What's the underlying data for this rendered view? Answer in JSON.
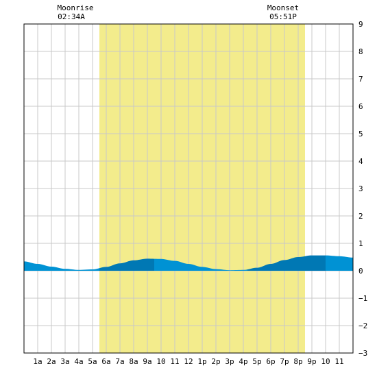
{
  "header": {
    "moonrise_label": "Moonrise",
    "moonrise_time": "02:34A",
    "moonset_label": "Moonset",
    "moonset_time": "05:51P"
  },
  "colors": {
    "daylight": "#f3ec8c",
    "water_light": "#0092d4",
    "water_dark": "#0078b4",
    "grid": "#c8c8c8",
    "frame": "#000000"
  },
  "chart_data": {
    "type": "area",
    "title": "",
    "xlabel": "",
    "ylabel": "",
    "xlim": [
      0,
      24
    ],
    "ylim": [
      -3,
      9
    ],
    "grid": true,
    "x_ticks": [
      {
        "x": 1,
        "label": "1a"
      },
      {
        "x": 2,
        "label": "2a"
      },
      {
        "x": 3,
        "label": "3a"
      },
      {
        "x": 4,
        "label": "4a"
      },
      {
        "x": 5,
        "label": "5a"
      },
      {
        "x": 6,
        "label": "6a"
      },
      {
        "x": 7,
        "label": "7a"
      },
      {
        "x": 8,
        "label": "8a"
      },
      {
        "x": 9,
        "label": "9a"
      },
      {
        "x": 10,
        "label": "10"
      },
      {
        "x": 11,
        "label": "11"
      },
      {
        "x": 12,
        "label": "12"
      },
      {
        "x": 13,
        "label": "1p"
      },
      {
        "x": 14,
        "label": "2p"
      },
      {
        "x": 15,
        "label": "3p"
      },
      {
        "x": 16,
        "label": "4p"
      },
      {
        "x": 17,
        "label": "5p"
      },
      {
        "x": 18,
        "label": "6p"
      },
      {
        "x": 19,
        "label": "7p"
      },
      {
        "x": 20,
        "label": "8p"
      },
      {
        "x": 21,
        "label": "9p"
      },
      {
        "x": 22,
        "label": "10"
      },
      {
        "x": 23,
        "label": "11"
      }
    ],
    "y_ticks": [
      {
        "y": 9,
        "label": "9"
      },
      {
        "y": 8,
        "label": "8"
      },
      {
        "y": 7,
        "label": "7"
      },
      {
        "y": 6,
        "label": "6"
      },
      {
        "y": 5,
        "label": "5"
      },
      {
        "y": 4,
        "label": "4"
      },
      {
        "y": 3,
        "label": "3"
      },
      {
        "y": 2,
        "label": "2"
      },
      {
        "y": 1,
        "label": "1"
      },
      {
        "y": 0,
        "label": "0"
      },
      {
        "y": -1,
        "label": "−1"
      },
      {
        "y": -2,
        "label": "−2"
      },
      {
        "y": -3,
        "label": "−3"
      }
    ],
    "daylight_hours": [
      5.5,
      20.5
    ],
    "moonrise_hour": 2.57,
    "moonset_hour": 17.85,
    "tide_series": {
      "x": [
        0,
        1,
        2,
        3,
        4,
        5,
        6,
        7,
        8,
        9,
        10,
        11,
        12,
        13,
        14,
        15,
        16,
        17,
        18,
        19,
        20,
        21,
        22,
        23,
        24
      ],
      "y": [
        0.34,
        0.25,
        0.15,
        0.07,
        0.03,
        0.05,
        0.14,
        0.27,
        0.38,
        0.44,
        0.43,
        0.36,
        0.25,
        0.14,
        0.06,
        0.02,
        0.03,
        0.11,
        0.25,
        0.39,
        0.5,
        0.56,
        0.56,
        0.53,
        0.48
      ]
    },
    "tide_shading_periods": [
      {
        "from": 0,
        "to": 5.5,
        "shade": "light"
      },
      {
        "from": 5.5,
        "to": 9.5,
        "shade": "dark"
      },
      {
        "from": 9.5,
        "to": 16.3,
        "shade": "light"
      },
      {
        "from": 16.3,
        "to": 22,
        "shade": "dark"
      },
      {
        "from": 22,
        "to": 24,
        "shade": "light"
      }
    ]
  }
}
